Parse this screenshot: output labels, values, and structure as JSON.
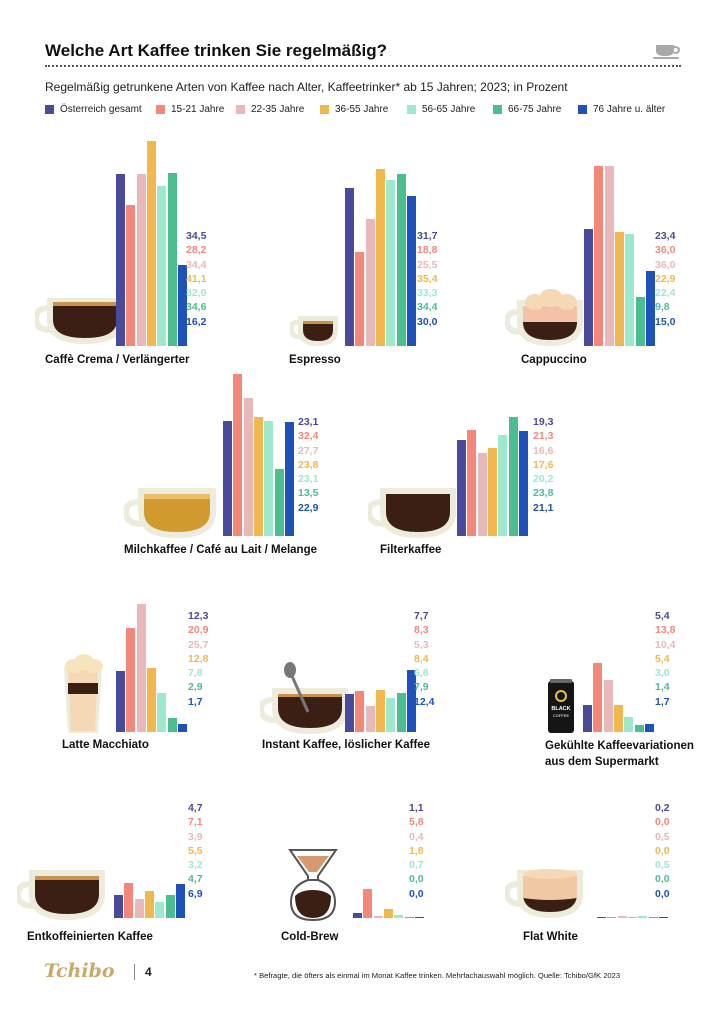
{
  "title": "Welche Art Kaffee trinken Sie regelmäßig?",
  "subtitle": "Regelmäßig getrunkene Arten von Kaffee nach Alter, Kaffeetrinker* ab 15 Jahren; 2023; in Prozent",
  "footnote": "* Befragte, die öfters als einmal im Monat Kaffee trinken. Mehrfachauswahl möglich. Quelle: Tchibo/GfK 2023",
  "footer": {
    "logo_text": "Tchibo",
    "page_number": "4"
  },
  "colors": {
    "series": [
      "#4a4a9a",
      "#f3877a",
      "#eab8b8",
      "#f0b84e",
      "#9ee9cd",
      "#4cbd8e",
      "#1f52b8"
    ],
    "coffee_dark": "#3b1f14",
    "crema": "#c9924a",
    "cup": "#ecebdc",
    "milk": "#f5d8b6"
  },
  "legend": [
    "Österreich gesamt",
    "15-21 Jahre",
    "22-35 Jahre",
    "36-55 Jahre",
    "56-65 Jahre",
    "66-75 Jahre",
    "76 Jahre u. älter"
  ],
  "chart_data": {
    "type": "bar",
    "title": "Welche Art Kaffee trinken Sie regelmäßig?",
    "unit": "Prozent",
    "series_names": [
      "Österreich gesamt",
      "15-21 Jahre",
      "22-35 Jahre",
      "36-55 Jahre",
      "56-65 Jahre",
      "66-75 Jahre",
      "76 Jahre u. älter"
    ],
    "panels": [
      {
        "id": "crema",
        "label": "Caffè Crema / Verlängerter",
        "values": [
          34.5,
          28.2,
          34.4,
          41.1,
          32.0,
          34.6,
          16.2
        ],
        "labels": [
          "34,5",
          "28,2",
          "34,4",
          "41,1",
          "32,0",
          "34,6",
          "16,2"
        ]
      },
      {
        "id": "espresso",
        "label": "Espresso",
        "values": [
          31.7,
          18.8,
          25.5,
          35.4,
          33.3,
          34.4,
          30.0
        ],
        "labels": [
          "31,7",
          "18,8",
          "25,5",
          "35,4",
          "33,3",
          "34,4",
          "30,0"
        ]
      },
      {
        "id": "cappuccino",
        "label": "Cappuccino",
        "values": [
          23.4,
          36.0,
          36.0,
          22.9,
          22.4,
          9.8,
          15.0
        ],
        "labels": [
          "23,4",
          "36,0",
          "36,0",
          "22,9",
          "22,4",
          "9,8",
          "15,0"
        ]
      },
      {
        "id": "milchkaffee",
        "label": "Milchkaffee / Café au Lait / Melange",
        "values": [
          23.1,
          32.4,
          27.7,
          23.8,
          23.1,
          13.5,
          22.9
        ],
        "labels": [
          "23,1",
          "32,4",
          "27,7",
          "23,8",
          "23,1",
          "13,5",
          "22,9"
        ]
      },
      {
        "id": "filterkaffee",
        "label": "Filterkaffee",
        "values": [
          19.3,
          21.3,
          16.6,
          17.6,
          20.2,
          23.8,
          21.1
        ],
        "labels": [
          "19,3",
          "21,3",
          "16,6",
          "17,6",
          "20,2",
          "23,8",
          "21,1"
        ]
      },
      {
        "id": "latte",
        "label": "Latte Macchiato",
        "values": [
          12.3,
          20.9,
          25.7,
          12.8,
          7.8,
          2.9,
          1.7
        ],
        "labels": [
          "12,3",
          "20,9",
          "25,7",
          "12,8",
          "7,8",
          "2,9",
          "1,7"
        ]
      },
      {
        "id": "instant",
        "label": "Instant Kaffee, löslicher Kaffee",
        "values": [
          7.7,
          8.3,
          5.3,
          8.4,
          6.8,
          7.9,
          12.4
        ],
        "labels": [
          "7,7",
          "8,3",
          "5,3",
          "8,4",
          "6,8",
          "7,9",
          "12,4"
        ]
      },
      {
        "id": "gekuehlt",
        "label": "Gekühlte Kaffeevariationen",
        "label2": "aus dem Supermarkt",
        "values": [
          5.4,
          13.8,
          10.4,
          5.4,
          3.0,
          1.4,
          1.7
        ],
        "labels": [
          "5,4",
          "13,8",
          "10,4",
          "5,4",
          "3,0",
          "1,4",
          "1,7"
        ]
      },
      {
        "id": "entkoffeiniert",
        "label": "Entkoffeinierten Kaffee",
        "values": [
          4.7,
          7.1,
          3.9,
          5.5,
          3.2,
          4.7,
          6.9
        ],
        "labels": [
          "4,7",
          "7,1",
          "3,9",
          "5,5",
          "3,2",
          "4,7",
          "6,9"
        ]
      },
      {
        "id": "coldbrew",
        "label": "Cold-Brew",
        "values": [
          1.1,
          5.8,
          0.4,
          1.8,
          0.7,
          0.0,
          0.0
        ],
        "labels": [
          "1,1",
          "5,8",
          "0,4",
          "1,8",
          "0,7",
          "0,0",
          "0,0"
        ]
      },
      {
        "id": "flatwhite",
        "label": "Flat White",
        "values": [
          0.2,
          0.0,
          0.5,
          0.0,
          0.5,
          0.0,
          0.0
        ],
        "labels": [
          "0,2",
          "0,0",
          "0,5",
          "0,0",
          "0,5",
          "0,0",
          "0,0"
        ]
      }
    ]
  }
}
